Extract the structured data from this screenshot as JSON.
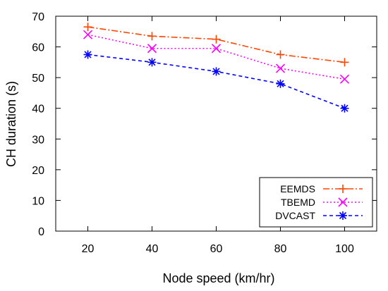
{
  "chart_data": {
    "type": "line",
    "title": "",
    "xlabel": "Node speed (km/hr)",
    "ylabel": "CH duration (s)",
    "x": [
      20,
      40,
      60,
      80,
      100
    ],
    "xlim": [
      10,
      110
    ],
    "ylim": [
      0,
      70
    ],
    "xticks": [
      20,
      40,
      60,
      80,
      100
    ],
    "yticks": [
      0,
      10,
      20,
      30,
      40,
      50,
      60,
      70
    ],
    "grid": false,
    "legend_position": "bottom-right",
    "series": [
      {
        "name": "EEMDS",
        "values": [
          66.5,
          63.5,
          62.5,
          57.5,
          55
        ],
        "color": "#ff4500",
        "marker": "plus",
        "line_style": "dash-dot"
      },
      {
        "name": "TBEMD",
        "values": [
          64,
          59.5,
          59.5,
          53,
          49.5
        ],
        "color": "#ff00ff",
        "marker": "cross",
        "line_style": "dotted"
      },
      {
        "name": "DVCAST",
        "values": [
          57.5,
          55,
          52,
          48,
          40
        ],
        "color": "#0000ff",
        "marker": "asterisk",
        "line_style": "dashed"
      }
    ]
  }
}
